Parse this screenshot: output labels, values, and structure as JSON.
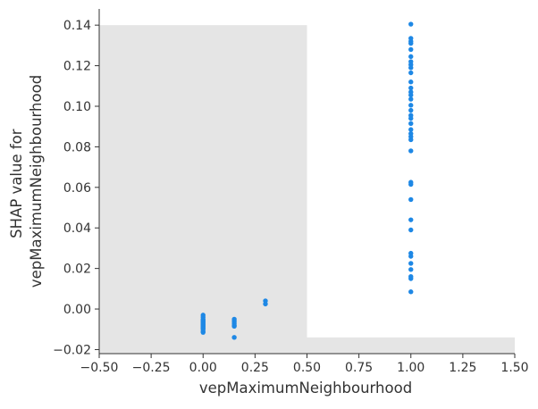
{
  "chart_data": {
    "type": "scatter",
    "title": "",
    "xlabel": "vepMaximumNeighbourhood",
    "ylabel": [
      "SHAP value for",
      "vepMaximumNeighbourhood"
    ],
    "xlim": [
      -0.5,
      1.5
    ],
    "ylim": [
      -0.022,
      0.148
    ],
    "xticks": [
      -0.5,
      -0.25,
      0.0,
      0.25,
      0.5,
      0.75,
      1.0,
      1.25,
      1.5
    ],
    "xtick_labels": [
      "−0.50",
      "−0.25",
      "0.00",
      "0.25",
      "0.50",
      "0.75",
      "1.00",
      "1.25",
      "1.50"
    ],
    "yticks": [
      -0.02,
      0.0,
      0.02,
      0.04,
      0.06,
      0.08,
      0.1,
      0.12,
      0.14
    ],
    "ytick_labels": [
      "−0.02",
      "0.00",
      "0.02",
      "0.04",
      "0.06",
      "0.08",
      "0.10",
      "0.12",
      "0.14"
    ],
    "grid": false,
    "colors": {
      "points": "#1e88e5",
      "histogram": "#e5e5e5",
      "axis": "#333333"
    },
    "background_histogram": [
      {
        "x_range": [
          -0.5,
          0.5
        ],
        "height_top": 0.14
      },
      {
        "x_range": [
          0.5,
          1.5
        ],
        "height_top": -0.014
      }
    ],
    "series": [
      {
        "points": [
          {
            "x": 0.0,
            "y": -0.003
          },
          {
            "x": 0.0,
            "y": -0.004
          },
          {
            "x": 0.0,
            "y": -0.005
          },
          {
            "x": 0.0,
            "y": -0.0055
          },
          {
            "x": 0.0,
            "y": -0.006
          },
          {
            "x": 0.0,
            "y": -0.0065
          },
          {
            "x": 0.0,
            "y": -0.007
          },
          {
            "x": 0.0,
            "y": -0.0075
          },
          {
            "x": 0.0,
            "y": -0.008
          },
          {
            "x": 0.0,
            "y": -0.0085
          },
          {
            "x": 0.0,
            "y": -0.009
          },
          {
            "x": 0.0,
            "y": -0.0095
          },
          {
            "x": 0.0,
            "y": -0.01
          },
          {
            "x": 0.0,
            "y": -0.011
          },
          {
            "x": 0.0,
            "y": -0.0115
          },
          {
            "x": 0.15,
            "y": -0.005
          },
          {
            "x": 0.15,
            "y": -0.006
          },
          {
            "x": 0.15,
            "y": -0.007
          },
          {
            "x": 0.15,
            "y": -0.008
          },
          {
            "x": 0.15,
            "y": -0.0085
          },
          {
            "x": 0.15,
            "y": -0.014
          },
          {
            "x": 0.3,
            "y": 0.004
          },
          {
            "x": 0.3,
            "y": 0.0025
          },
          {
            "x": 1.0,
            "y": 0.1405
          },
          {
            "x": 1.0,
            "y": 0.1335
          },
          {
            "x": 1.0,
            "y": 0.132
          },
          {
            "x": 1.0,
            "y": 0.131
          },
          {
            "x": 1.0,
            "y": 0.128
          },
          {
            "x": 1.0,
            "y": 0.1245
          },
          {
            "x": 1.0,
            "y": 0.122
          },
          {
            "x": 1.0,
            "y": 0.1205
          },
          {
            "x": 1.0,
            "y": 0.119
          },
          {
            "x": 1.0,
            "y": 0.1165
          },
          {
            "x": 1.0,
            "y": 0.112
          },
          {
            "x": 1.0,
            "y": 0.109
          },
          {
            "x": 1.0,
            "y": 0.107
          },
          {
            "x": 1.0,
            "y": 0.1055
          },
          {
            "x": 1.0,
            "y": 0.1035
          },
          {
            "x": 1.0,
            "y": 0.1005
          },
          {
            "x": 1.0,
            "y": 0.098
          },
          {
            "x": 1.0,
            "y": 0.0955
          },
          {
            "x": 1.0,
            "y": 0.094
          },
          {
            "x": 1.0,
            "y": 0.0915
          },
          {
            "x": 1.0,
            "y": 0.0885
          },
          {
            "x": 1.0,
            "y": 0.0865
          },
          {
            "x": 1.0,
            "y": 0.085
          },
          {
            "x": 1.0,
            "y": 0.0835
          },
          {
            "x": 1.0,
            "y": 0.078
          },
          {
            "x": 1.0,
            "y": 0.0625
          },
          {
            "x": 1.0,
            "y": 0.0615
          },
          {
            "x": 1.0,
            "y": 0.054
          },
          {
            "x": 1.0,
            "y": 0.044
          },
          {
            "x": 1.0,
            "y": 0.039
          },
          {
            "x": 1.0,
            "y": 0.0275
          },
          {
            "x": 1.0,
            "y": 0.026
          },
          {
            "x": 1.0,
            "y": 0.0225
          },
          {
            "x": 1.0,
            "y": 0.0195
          },
          {
            "x": 1.0,
            "y": 0.016
          },
          {
            "x": 1.0,
            "y": 0.015
          },
          {
            "x": 1.0,
            "y": 0.0085
          }
        ]
      }
    ]
  }
}
